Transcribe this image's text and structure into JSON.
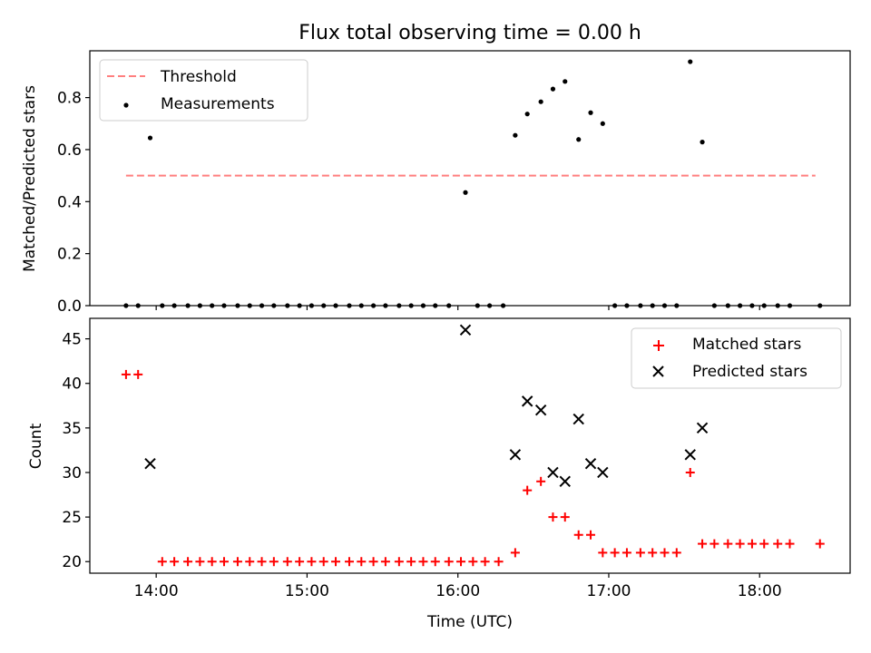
{
  "chart_data": [
    {
      "type": "scatter",
      "title": "Flux total observing time = 0.00 h",
      "xlabel": "",
      "ylabel": "Matched/Predicted stars",
      "ylim": [
        0,
        0.98
      ],
      "yticks": [
        0.0,
        0.2,
        0.4,
        0.6,
        0.8
      ],
      "ytick_labels": [
        "0.0",
        "0.2",
        "0.4",
        "0.6",
        "0.8"
      ],
      "xlim_hours": [
        13.56,
        18.6
      ],
      "xticks_hours": [
        14,
        15,
        16,
        17,
        18
      ],
      "legend_position": "upper-left",
      "series": [
        {
          "name": "Threshold",
          "style": "dashed-line",
          "color": "#ff7f7f",
          "x": [
            13.8,
            18.37
          ],
          "y": [
            0.5,
            0.5
          ]
        },
        {
          "name": "Measurements",
          "style": "dot",
          "color": "#000000",
          "x": [
            13.8,
            13.88,
            13.96,
            14.04,
            14.12,
            14.21,
            14.29,
            14.37,
            14.45,
            14.54,
            14.62,
            14.7,
            14.78,
            14.87,
            14.95,
            15.03,
            15.11,
            15.19,
            15.28,
            15.36,
            15.44,
            15.52,
            15.61,
            15.69,
            15.77,
            15.85,
            15.94,
            16.05,
            16.13,
            16.21,
            16.3,
            16.38,
            16.46,
            16.55,
            16.63,
            16.71,
            16.8,
            16.88,
            16.96,
            17.04,
            17.12,
            17.21,
            17.29,
            17.37,
            17.45,
            17.54,
            17.62,
            17.7,
            17.79,
            17.87,
            17.95,
            18.03,
            18.12,
            18.2,
            18.4
          ],
          "y": [
            0,
            0,
            0.645,
            0,
            0,
            0,
            0,
            0,
            0,
            0,
            0,
            0,
            0,
            0,
            0,
            0,
            0,
            0,
            0,
            0,
            0,
            0,
            0,
            0,
            0,
            0,
            0,
            0.435,
            0,
            0,
            0,
            0.655,
            0.737,
            0.784,
            0.833,
            0.862,
            0.639,
            0.742,
            0.7,
            0,
            0,
            0,
            0,
            0,
            0,
            0.938,
            0.629,
            0,
            0,
            0,
            0,
            0,
            0,
            0,
            0
          ]
        }
      ]
    },
    {
      "type": "scatter",
      "title": "",
      "xlabel": "Time (UTC)",
      "ylabel": "Count",
      "ylim": [
        18.7,
        47.3
      ],
      "yticks": [
        20,
        25,
        30,
        35,
        40,
        45
      ],
      "ytick_labels": [
        "20",
        "25",
        "30",
        "35",
        "40",
        "45"
      ],
      "xlim_hours": [
        13.56,
        18.6
      ],
      "xticks_hours": [
        14,
        15,
        16,
        17,
        18
      ],
      "xtick_labels": [
        "14:00",
        "15:00",
        "16:00",
        "17:00",
        "18:00"
      ],
      "legend_position": "upper-right",
      "series": [
        {
          "name": "Matched stars",
          "marker": "plus",
          "color": "#ff0000",
          "x": [
            13.8,
            13.88,
            14.04,
            14.12,
            14.21,
            14.29,
            14.37,
            14.45,
            14.54,
            14.62,
            14.7,
            14.78,
            14.87,
            14.95,
            15.03,
            15.11,
            15.19,
            15.28,
            15.36,
            15.44,
            15.52,
            15.61,
            15.69,
            15.77,
            15.85,
            15.94,
            16.02,
            16.1,
            16.18,
            16.27,
            16.38,
            16.46,
            16.55,
            16.63,
            16.71,
            16.8,
            16.88,
            16.96,
            17.04,
            17.12,
            17.21,
            17.29,
            17.37,
            17.45,
            17.54,
            17.62,
            17.7,
            17.79,
            17.87,
            17.95,
            18.03,
            18.12,
            18.2,
            18.4
          ],
          "y": [
            41,
            41,
            20,
            20,
            20,
            20,
            20,
            20,
            20,
            20,
            20,
            20,
            20,
            20,
            20,
            20,
            20,
            20,
            20,
            20,
            20,
            20,
            20,
            20,
            20,
            20,
            20,
            20,
            20,
            20,
            21,
            28,
            29,
            25,
            25,
            23,
            23,
            21,
            21,
            21,
            21,
            21,
            21,
            21,
            30,
            22,
            22,
            22,
            22,
            22,
            22,
            22,
            22,
            22
          ]
        },
        {
          "name": "Predicted stars",
          "marker": "x",
          "color": "#000000",
          "x": [
            13.96,
            16.05,
            16.38,
            16.46,
            16.55,
            16.63,
            16.71,
            16.8,
            16.88,
            16.96,
            17.54,
            17.62
          ],
          "y": [
            31,
            46,
            32,
            38,
            37,
            30,
            29,
            36,
            31,
            30,
            32,
            35
          ]
        }
      ]
    }
  ]
}
